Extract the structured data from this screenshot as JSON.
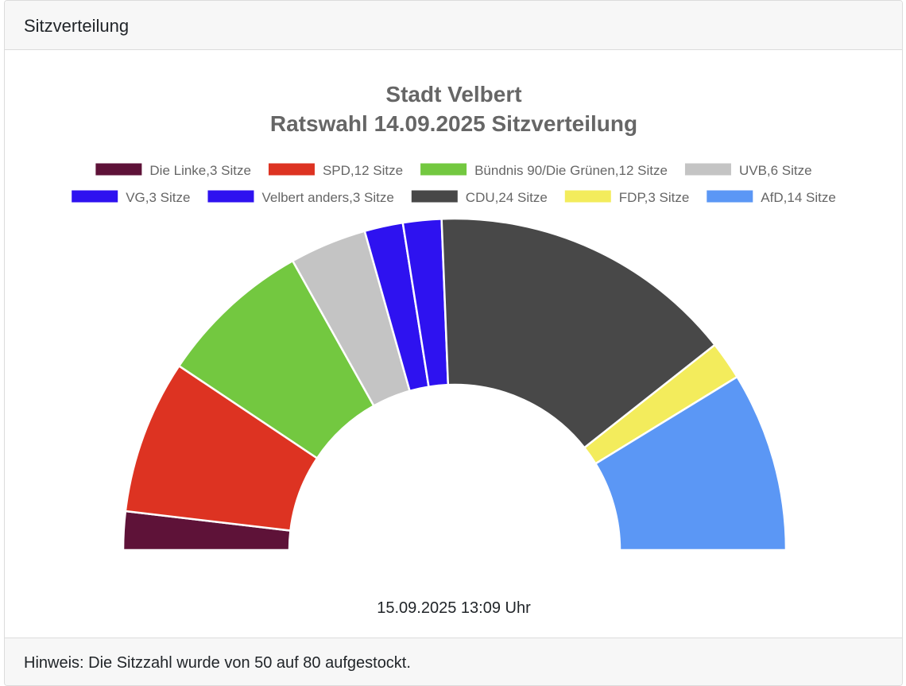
{
  "card": {
    "header": "Sitzverteilung",
    "footer": "Hinweis: Die Sitzzahl wurde von 50 auf 80 aufgestockt."
  },
  "chart_data": {
    "type": "pie",
    "variant": "half-doughnut",
    "title": [
      "Stadt Velbert",
      "Ratswahl 14.09.2025 Sitzverteilung"
    ],
    "legend_position": "top",
    "series": [
      {
        "name": "Die Linke",
        "label": "Die Linke,3 Sitze",
        "value": 3,
        "color": "#5e1238"
      },
      {
        "name": "SPD",
        "label": "SPD,12 Sitze",
        "value": 12,
        "color": "#dd3322"
      },
      {
        "name": "Bündnis 90/Die Grünen",
        "label": "Bündnis 90/Die Grünen,12 Sitze",
        "value": 12,
        "color": "#73c840"
      },
      {
        "name": "UVB",
        "label": "UVB,6 Sitze",
        "value": 6,
        "color": "#c4c4c4"
      },
      {
        "name": "VG",
        "label": "VG,3 Sitze",
        "value": 3,
        "color": "#2e12f0"
      },
      {
        "name": "Velbert anders",
        "label": "Velbert anders,3 Sitze",
        "value": 3,
        "color": "#2e12f0"
      },
      {
        "name": "CDU",
        "label": "CDU,24 Sitze",
        "value": 24,
        "color": "#484848"
      },
      {
        "name": "FDP",
        "label": "FDP,3 Sitze",
        "value": 3,
        "color": "#f3ec5c"
      },
      {
        "name": "AfD",
        "label": "AfD,14 Sitze",
        "value": 14,
        "color": "#5b97f5"
      }
    ],
    "timestamp": "15.09.2025 13:09 Uhr"
  }
}
